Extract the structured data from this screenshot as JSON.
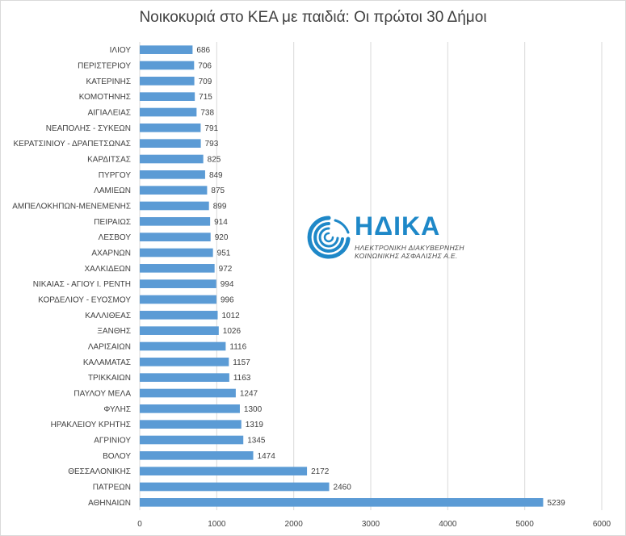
{
  "chart_data": {
    "type": "bar",
    "orientation": "horizontal",
    "title": "Νοικοκυριά στο ΚΕΑ με παιδιά: Οι πρώτοι 30 Δήμοι",
    "categories": [
      "ΙΛΙΟΥ",
      "ΠΕΡΙΣΤΕΡΙΟΥ",
      "ΚΑΤΕΡΙΝΗΣ",
      "ΚΟΜΟΤΗΝΗΣ",
      "ΑΙΓΙΑΛΕΙΑΣ",
      "ΝΕΑΠΟΛΗΣ - ΣΥΚΕΩΝ",
      "ΚΕΡΑΤΣΙΝΙΟΥ - ΔΡΑΠΕΤΣΩΝΑΣ",
      "ΚΑΡΔΙΤΣΑΣ",
      "ΠΥΡΓΟΥ",
      "ΛΑΜΙΕΩΝ",
      "ΑΜΠΕΛΟΚΗΠΩΝ-ΜΕΝΕΜΕΝΗΣ",
      "ΠΕΙΡΑΙΩΣ",
      "ΛΕΣΒΟΥ",
      "ΑΧΑΡΝΩΝ",
      "ΧΑΛΚΙΔΕΩΝ",
      "ΝΙΚΑΙΑΣ - ΑΓΙΟΥ Ι. ΡΕΝΤΗ",
      "ΚΟΡΔΕΛΙΟΥ - ΕΥΟΣΜΟΥ",
      "ΚΑΛΛΙΘΕΑΣ",
      "ΞΑΝΘΗΣ",
      "ΛΑΡΙΣΑΙΩΝ",
      "ΚΑΛΑΜΑΤΑΣ",
      "ΤΡΙΚΚΑΙΩΝ",
      "ΠΑΥΛΟΥ ΜΕΛΑ",
      "ΦΥΛΗΣ",
      "ΗΡΑΚΛΕΙΟΥ ΚΡΗΤΗΣ",
      "ΑΓΡΙΝΙΟΥ",
      "ΒΟΛΟΥ",
      "ΘΕΣΣΑΛΟΝΙΚΗΣ",
      "ΠΑΤΡΕΩΝ",
      "ΑΘΗΝΑΙΩΝ"
    ],
    "values": [
      686,
      706,
      709,
      715,
      738,
      791,
      793,
      825,
      849,
      875,
      899,
      914,
      920,
      951,
      972,
      994,
      996,
      1012,
      1026,
      1116,
      1157,
      1163,
      1247,
      1300,
      1319,
      1345,
      1474,
      2172,
      2460,
      5239
    ],
    "xlim": [
      0,
      6000
    ],
    "x_ticks": [
      "0",
      "1000",
      "2000",
      "3000",
      "4000",
      "5000",
      "6000"
    ],
    "grid": true,
    "data_labels": true,
    "bar_color": "#5b9bd5",
    "xlabel": "",
    "ylabel": ""
  },
  "logo": {
    "name": "ΗΔΙΚΑ",
    "line1": "ΗΛΕΚΤΡΟΝΙΚΗ ΔΙΑΚΥΒΕΡΝΗΣΗ",
    "line2": "ΚΟΙΝΩΝΙΚΗΣ ΑΣΦΑΛΙΣΗΣ Α.Ε.",
    "color": "#1e88c8"
  }
}
